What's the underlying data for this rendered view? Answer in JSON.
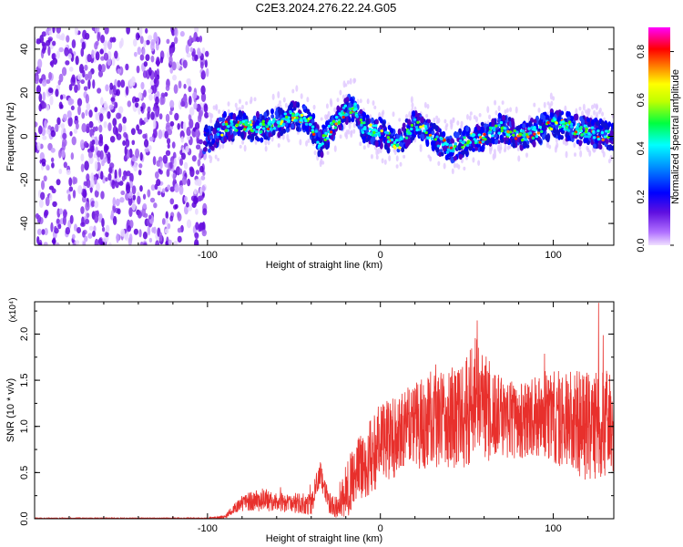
{
  "title": "C2E3.2024.276.22.24.G05",
  "chart_data": [
    {
      "type": "heatmap",
      "name": "spectrogram",
      "xlabel": "Height of straight line (km)",
      "ylabel": "Frequency (Hz)",
      "xlim": [
        -200,
        135
      ],
      "ylim": [
        -50,
        50
      ],
      "xticks": [
        -100,
        0,
        100
      ],
      "yticks": [
        -40,
        -20,
        0,
        20,
        40
      ],
      "colorbar": {
        "label": "Normalized spectral amplitude",
        "range": [
          0.0,
          0.9
        ],
        "ticks": [
          0.0,
          0.2,
          0.4,
          0.6,
          0.8
        ],
        "colors": [
          "#f0e0ff",
          "#8a2be2",
          "#0000ff",
          "#00ffff",
          "#00ff00",
          "#ffff00",
          "#ff8000",
          "#ff0000",
          "#ff00ff"
        ]
      },
      "noise_region_x": [
        -200,
        -100
      ],
      "ridge": {
        "x": [
          -100,
          -90,
          -80,
          -70,
          -60,
          -50,
          -40,
          -35,
          -30,
          -20,
          -15,
          -10,
          0,
          10,
          20,
          30,
          40,
          50,
          60,
          70,
          80,
          90,
          100,
          110,
          120,
          135
        ],
        "freq": [
          -2,
          4,
          5,
          4,
          6,
          10,
          6,
          -4,
          2,
          12,
          14,
          4,
          2,
          -4,
          6,
          0,
          -6,
          -2,
          0,
          4,
          0,
          2,
          6,
          4,
          2,
          0
        ]
      }
    },
    {
      "type": "line",
      "name": "snr",
      "xlabel": "Height of straight line (km)",
      "ylabel": "SNR (10 * v/v)",
      "scale_label": "(x10⁴)",
      "xlim": [
        -200,
        135
      ],
      "ylim": [
        0,
        2.35
      ],
      "xticks": [
        -100,
        0,
        100
      ],
      "yticks": [
        0.0,
        0.5,
        1.0,
        1.5,
        2.0
      ],
      "color": "#e8302c",
      "envelope": {
        "x": [
          -200,
          -100,
          -90,
          -85,
          -80,
          -70,
          -60,
          -40,
          -35,
          -30,
          -25,
          -20,
          -10,
          0,
          10,
          20,
          30,
          40,
          50,
          55,
          60,
          65,
          70,
          80,
          90,
          100,
          110,
          120,
          130,
          135
        ],
        "mean": [
          0.005,
          0.005,
          0.02,
          0.1,
          0.18,
          0.2,
          0.18,
          0.16,
          0.5,
          0.18,
          0.12,
          0.3,
          0.6,
          0.8,
          0.9,
          1.0,
          1.05,
          1.1,
          1.15,
          1.3,
          1.2,
          1.15,
          1.1,
          1.05,
          1.1,
          1.1,
          1.05,
          1.0,
          1.05,
          1.0
        ],
        "spread": [
          0.005,
          0.005,
          0.02,
          0.05,
          0.1,
          0.12,
          0.1,
          0.12,
          0.15,
          0.12,
          0.12,
          0.3,
          0.4,
          0.45,
          0.45,
          0.5,
          0.5,
          0.55,
          0.6,
          0.7,
          0.6,
          0.5,
          0.45,
          0.4,
          0.45,
          0.5,
          0.55,
          0.6,
          0.6,
          0.5
        ]
      }
    }
  ]
}
